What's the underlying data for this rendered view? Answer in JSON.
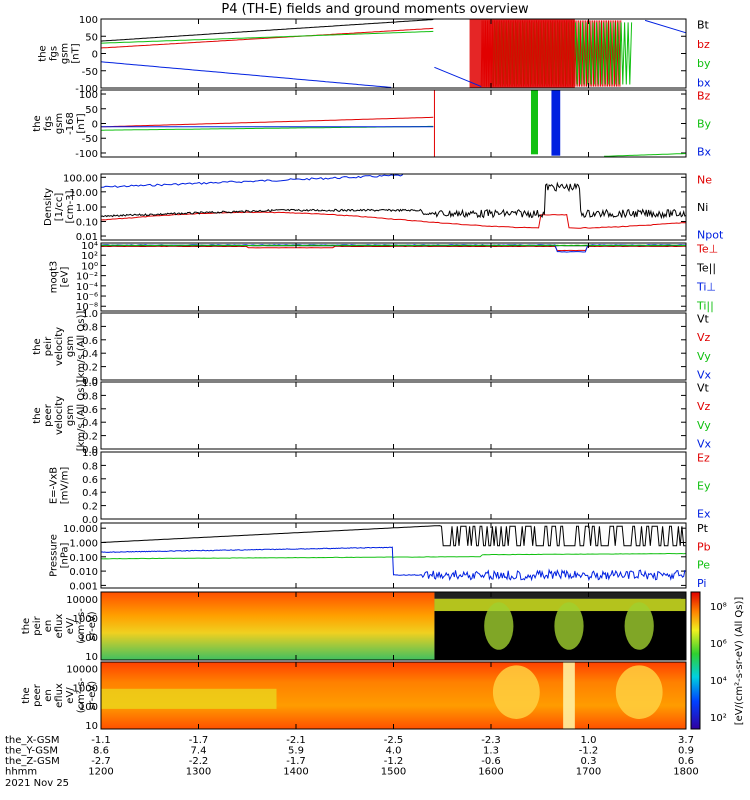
{
  "title": "P4 (TH-E) fields and ground moments overview",
  "colors": {
    "black": "#000000",
    "red": "#e00000",
    "green": "#10c010",
    "blue": "#0020e0"
  },
  "panels": [
    {
      "id": "fgs_gsm",
      "ylabel": [
        "the",
        "fgs",
        "gsm",
        "[nT]"
      ],
      "ticks": [
        "100",
        "50",
        "0",
        "-50",
        "-100"
      ],
      "tickpos": [
        0,
        0.25,
        0.5,
        0.75,
        1
      ],
      "legend": [
        {
          "text": "Bt",
          "color": "black"
        },
        {
          "text": "bz",
          "color": "red"
        },
        {
          "text": "by",
          "color": "green"
        },
        {
          "text": "bx",
          "color": "blue"
        }
      ]
    },
    {
      "id": "fgs_gsm_dc",
      "ylabel": [
        "the",
        "fgs",
        "gsm",
        "-168",
        "[nT]"
      ],
      "ticks": [
        "100",
        "50",
        "0",
        "-50",
        "-100"
      ],
      "tickpos": [
        0.06,
        0.28,
        0.5,
        0.72,
        0.94
      ],
      "legend": [
        {
          "text": "Bz",
          "color": "red"
        },
        {
          "text": "By",
          "color": "green"
        },
        {
          "text": "Bx",
          "color": "blue"
        }
      ]
    },
    {
      "id": "density",
      "ylabel": [
        "Density",
        "[1/cc]",
        "[cm-3]"
      ],
      "ticks": [
        "100.00",
        "10.00",
        "1.00",
        "0.10",
        "0.01"
      ],
      "tickpos": [
        0.05,
        0.27,
        0.5,
        0.72,
        0.94
      ],
      "legend": [
        {
          "text": "Ne",
          "color": "red"
        },
        {
          "text": "Ni",
          "color": "black"
        },
        {
          "text": "Npot",
          "color": "blue"
        }
      ]
    },
    {
      "id": "moqt3",
      "ylabel": [
        "moqt3",
        "[eV]"
      ],
      "ticks": [
        "10⁴",
        "10²",
        "10⁰",
        "10⁻²",
        "10⁻⁴",
        "10⁻⁶",
        "10⁻⁸"
      ],
      "tickpos": [
        0.03,
        0.18,
        0.33,
        0.48,
        0.63,
        0.78,
        0.93
      ],
      "legend": [
        {
          "text": "Te⊥",
          "color": "red"
        },
        {
          "text": "Te||",
          "color": "black"
        },
        {
          "text": "Ti⊥",
          "color": "blue"
        },
        {
          "text": "Ti||",
          "color": "green"
        }
      ]
    },
    {
      "id": "peir_velocity",
      "ylabel": [
        "the",
        "peir",
        "velocity",
        "gsm",
        "[km/s (All Qs)]"
      ],
      "ticks": [
        "1.0",
        "0.8",
        "0.6",
        "0.4",
        "0.2",
        "0.0"
      ],
      "tickpos": [
        0,
        0.2,
        0.4,
        0.6,
        0.8,
        1
      ],
      "legend": [
        {
          "text": "Vt",
          "color": "black"
        },
        {
          "text": "Vz",
          "color": "red"
        },
        {
          "text": "Vy",
          "color": "green"
        },
        {
          "text": "Vx",
          "color": "blue"
        }
      ]
    },
    {
      "id": "peer_velocity",
      "ylabel": [
        "the",
        "peer",
        "velocity",
        "gsm",
        "[km/s (All Qs)]"
      ],
      "ticks": [
        "1.0",
        "0.8",
        "0.6",
        "0.4",
        "0.2",
        "0.0"
      ],
      "tickpos": [
        0,
        0.2,
        0.4,
        0.6,
        0.8,
        1
      ],
      "legend": [
        {
          "text": "Vt",
          "color": "black"
        },
        {
          "text": "Vz",
          "color": "red"
        },
        {
          "text": "Vy",
          "color": "green"
        },
        {
          "text": "Vx",
          "color": "blue"
        }
      ]
    },
    {
      "id": "e_vxb",
      "ylabel": [
        "E=-VxB",
        "[mV/m]"
      ],
      "ticks": [
        "1.0",
        "0.8",
        "0.6",
        "0.4",
        "0.2",
        "0.0"
      ],
      "tickpos": [
        0,
        0.2,
        0.4,
        0.6,
        0.8,
        1
      ],
      "legend": [
        {
          "text": "Ez",
          "color": "red"
        },
        {
          "text": "Ey",
          "color": "green"
        },
        {
          "text": "Ex",
          "color": "blue"
        }
      ]
    },
    {
      "id": "pressure",
      "ylabel": [
        "Pressure",
        "[nPa]"
      ],
      "ticks": [
        "10.000",
        "1.000",
        "0.100",
        "0.010",
        "0.001"
      ],
      "tickpos": [
        0.08,
        0.3,
        0.52,
        0.74,
        0.96
      ],
      "legend": [
        {
          "text": "Pt",
          "color": "black"
        },
        {
          "text": "Pb",
          "color": "red"
        },
        {
          "text": "Pe",
          "color": "green"
        },
        {
          "text": "Pi",
          "color": "blue"
        }
      ]
    },
    {
      "id": "peir_eflux",
      "ylabel": [
        "the",
        "peir",
        "en",
        "eflux",
        "eV/",
        "(cm²-s-",
        "sr-eV)"
      ],
      "ticks": [
        "10000",
        "1000",
        "100",
        "10"
      ],
      "tickpos": [
        0.1,
        0.38,
        0.66,
        0.94
      ]
    },
    {
      "id": "peer_eflux",
      "ylabel": [
        "the",
        "peer",
        "en",
        "eflux",
        "eV/",
        "(cm²-s-",
        "sr-eV)"
      ],
      "ticks": [
        "10000",
        "1000",
        "100",
        "10"
      ],
      "tickpos": [
        0.1,
        0.38,
        0.66,
        0.94
      ]
    }
  ],
  "colorbar": {
    "ticks": [
      "10⁸",
      "10⁶",
      "10⁴",
      "10²"
    ],
    "label": "[eV/(cm²-s-sr-eV) (All Qs)]"
  },
  "xaxis": {
    "rows": [
      {
        "label": "the_X-GSM",
        "values": [
          "-1.1",
          "-1.7",
          "-2.1",
          "-2.5",
          "-2.3",
          "1.0",
          "3.7"
        ]
      },
      {
        "label": "the_Y-GSM",
        "values": [
          "8.6",
          "7.4",
          "5.9",
          "4.0",
          "1.3",
          "-1.2",
          "0.9"
        ]
      },
      {
        "label": "the_Z-GSM",
        "values": [
          "-2.7",
          "-2.2",
          "-1.7",
          "-1.2",
          "-0.6",
          "0.3",
          "0.6"
        ]
      },
      {
        "label": "hhmm",
        "values": [
          "1200",
          "1300",
          "1400",
          "1500",
          "1600",
          "1700",
          "1800"
        ]
      }
    ],
    "date": "2021 Nov 25"
  },
  "chart_data": {
    "type": "line",
    "title": "P4 (TH-E) fields and ground moments overview",
    "x": [
      "1200",
      "1300",
      "1400",
      "1500",
      "1600",
      "1700",
      "1800"
    ],
    "xlabel": "hhmm",
    "series": [
      {
        "name": "Bt",
        "values": [
          40,
          52,
          75,
          100,
          100,
          100,
          100
        ]
      },
      {
        "name": "bz",
        "values": [
          25,
          30,
          50,
          95,
          0,
          20,
          0
        ]
      },
      {
        "name": "by",
        "values": [
          37,
          42,
          55,
          75,
          0,
          10,
          60
        ]
      },
      {
        "name": "bx",
        "values": [
          -25,
          -32,
          -60,
          -100,
          -90,
          -60,
          40
        ]
      },
      {
        "name": "Ne",
        "values": [
          0.2,
          0.8,
          0.5,
          0.3,
          0.6,
          1.5,
          0.6
        ]
      },
      {
        "name": "Ni",
        "values": [
          0.3,
          1.0,
          0.3,
          0.15,
          0.12,
          15,
          0.15
        ]
      },
      {
        "name": "Npot",
        "values": [
          8,
          12,
          20,
          50,
          80,
          null,
          null
        ]
      },
      {
        "name": "Pt",
        "values": [
          1.5,
          3,
          5,
          9,
          8,
          7,
          8
        ]
      },
      {
        "name": "Pe",
        "values": [
          0.03,
          0.04,
          0.05,
          0.04,
          0.06,
          0.05,
          0.06
        ]
      },
      {
        "name": "Pi",
        "values": [
          0.1,
          0.13,
          0.1,
          0.06,
          0.008,
          0.01,
          0.008
        ]
      }
    ]
  }
}
